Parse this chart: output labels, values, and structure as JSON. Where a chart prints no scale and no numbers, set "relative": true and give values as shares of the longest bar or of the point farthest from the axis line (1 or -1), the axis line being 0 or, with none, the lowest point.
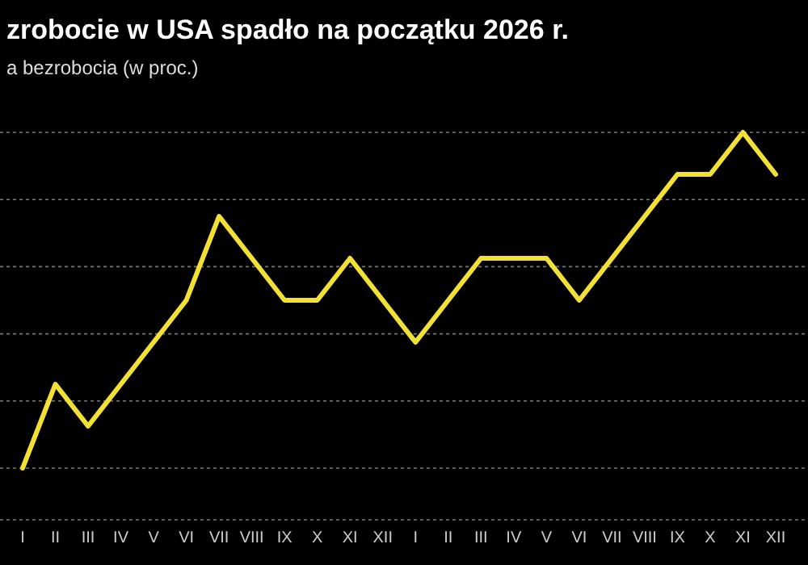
{
  "chart_data": {
    "type": "line",
    "title": "zrobocie w USA spadło na początku 2026 r.",
    "subtitle": "a bezrobocia (w proc.)",
    "relative": true,
    "grid": "y",
    "categories": [
      "I",
      "II",
      "III",
      "IV",
      "V",
      "VI",
      "VII",
      "VIII",
      "IX",
      "X",
      "XI",
      "XII",
      "I",
      "II",
      "III",
      "IV",
      "V",
      "VI",
      "VII",
      "VIII",
      "IX",
      "X",
      "XI",
      "XII"
    ],
    "series": [
      {
        "color": "#f2e035",
        "values": [
          0,
          0.25,
          0.125,
          0.25,
          0.375,
          0.5,
          0.75,
          0.625,
          0.5,
          0.5,
          0.625,
          0.5,
          0.375,
          0.5,
          0.625,
          0.625,
          0.625,
          0.5,
          0.625,
          0.75,
          0.875,
          0.875,
          1,
          0.875
        ]
      }
    ]
  }
}
